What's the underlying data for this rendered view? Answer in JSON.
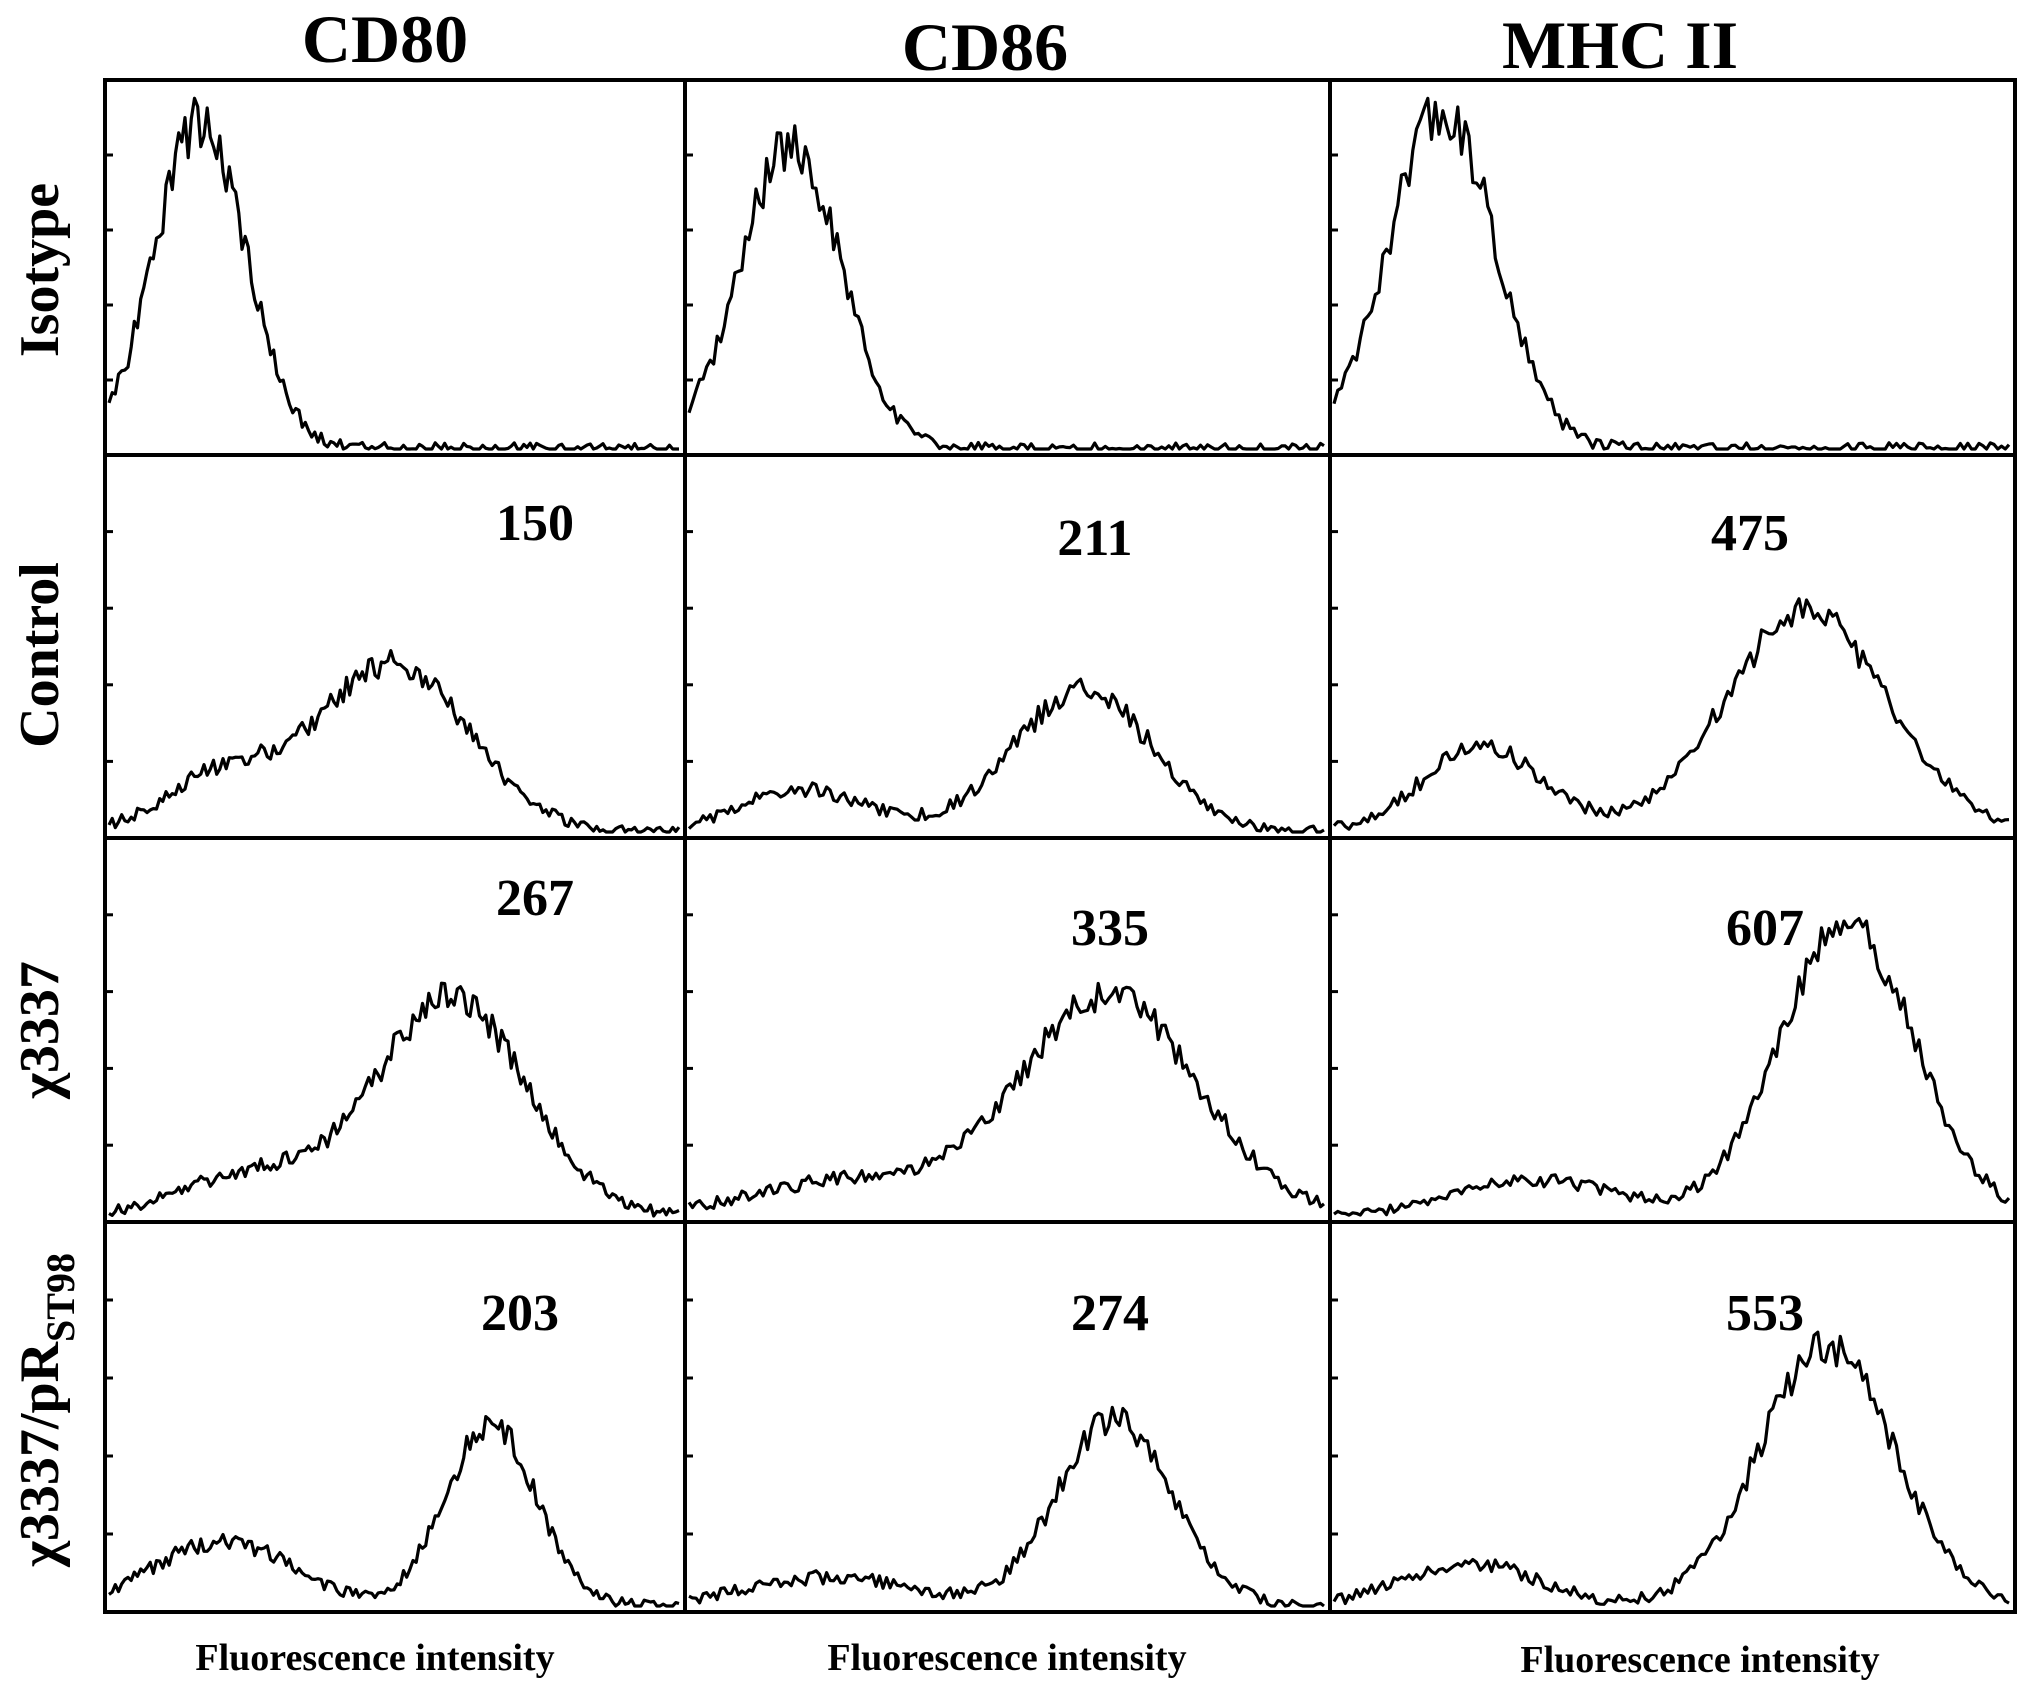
{
  "chart_data": {
    "type": "line",
    "columns": [
      {
        "label": "CD80",
        "axis_label": "Fluorescence intensity"
      },
      {
        "label": "CD86",
        "axis_label": "Fluorescence intensity"
      },
      {
        "label": "MHC II",
        "axis_label": "Fluorescence intensity"
      }
    ],
    "rows": [
      {
        "label": "Isotype",
        "sub": ""
      },
      {
        "label": "Control",
        "sub": ""
      },
      {
        "label": "χ3337",
        "sub": ""
      },
      {
        "label": "χ3337/pR",
        "sub": "ST98"
      }
    ],
    "values": [
      [
        "",
        "",
        ""
      ],
      [
        "150",
        "211",
        "475"
      ],
      [
        "267",
        "335",
        "607"
      ],
      [
        "203",
        "274",
        "553"
      ]
    ],
    "panels": [
      [
        {
          "peaks": [
            {
              "x": 0.16,
              "h": 0.95,
              "w": 0.08
            }
          ],
          "noise": 0.06,
          "seed": 11
        },
        {
          "peaks": [
            {
              "x": 0.16,
              "h": 0.88,
              "w": 0.08
            }
          ],
          "noise": 0.06,
          "seed": 12
        },
        {
          "peaks": [
            {
              "x": 0.16,
              "h": 0.98,
              "w": 0.08
            }
          ],
          "noise": 0.06,
          "seed": 13
        }
      ],
      [
        {
          "peaks": [
            {
              "x": 0.2,
              "h": 0.16,
              "w": 0.1
            },
            {
              "x": 0.5,
              "h": 0.48,
              "w": 0.13
            }
          ],
          "noise": 0.05,
          "seed": 21
        },
        {
          "peaks": [
            {
              "x": 0.18,
              "h": 0.12,
              "w": 0.1
            },
            {
              "x": 0.62,
              "h": 0.4,
              "w": 0.11
            }
          ],
          "noise": 0.05,
          "seed": 22
        },
        {
          "peaks": [
            {
              "x": 0.22,
              "h": 0.24,
              "w": 0.09
            },
            {
              "x": 0.7,
              "h": 0.62,
              "w": 0.12
            }
          ],
          "noise": 0.05,
          "seed": 23
        }
      ],
      [
        {
          "peaks": [
            {
              "x": 0.25,
              "h": 0.12,
              "w": 0.12
            },
            {
              "x": 0.6,
              "h": 0.62,
              "w": 0.13
            }
          ],
          "noise": 0.05,
          "seed": 31
        },
        {
          "peaks": [
            {
              "x": 0.25,
              "h": 0.1,
              "w": 0.15
            },
            {
              "x": 0.66,
              "h": 0.62,
              "w": 0.14
            }
          ],
          "noise": 0.05,
          "seed": 32
        },
        {
          "peaks": [
            {
              "x": 0.3,
              "h": 0.1,
              "w": 0.12
            },
            {
              "x": 0.76,
              "h": 0.82,
              "w": 0.1
            }
          ],
          "noise": 0.05,
          "seed": 33
        }
      ],
      [
        {
          "peaks": [
            {
              "x": 0.2,
              "h": 0.18,
              "w": 0.12
            },
            {
              "x": 0.67,
              "h": 0.5,
              "w": 0.08
            }
          ],
          "noise": 0.05,
          "seed": 41
        },
        {
          "peaks": [
            {
              "x": 0.22,
              "h": 0.08,
              "w": 0.13
            },
            {
              "x": 0.67,
              "h": 0.52,
              "w": 0.09
            }
          ],
          "noise": 0.05,
          "seed": 42
        },
        {
          "peaks": [
            {
              "x": 0.2,
              "h": 0.12,
              "w": 0.1
            },
            {
              "x": 0.73,
              "h": 0.72,
              "w": 0.1
            }
          ],
          "noise": 0.05,
          "seed": 43
        }
      ]
    ]
  }
}
